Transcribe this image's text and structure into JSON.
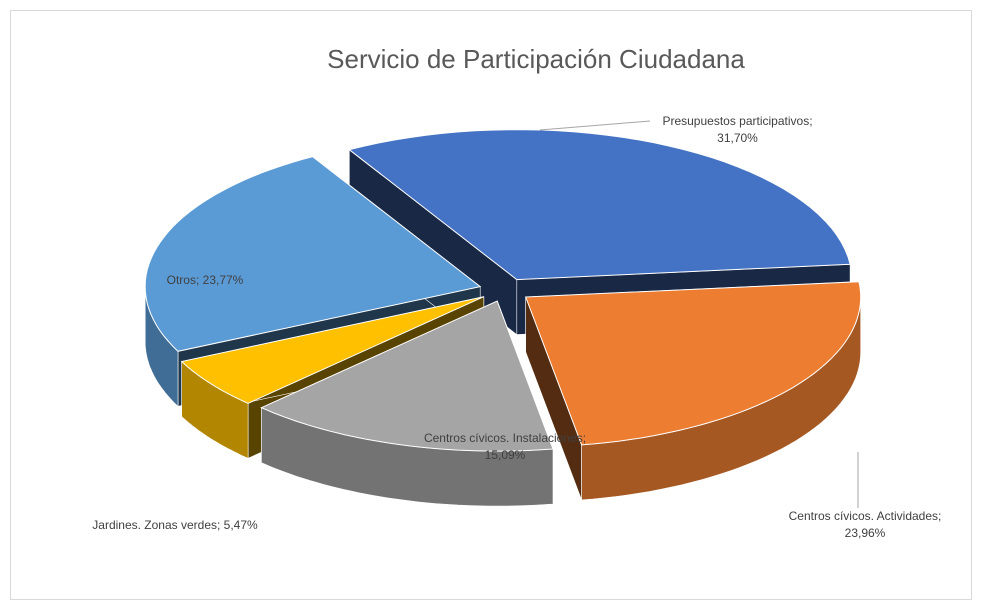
{
  "chart_data": {
    "type": "pie3d",
    "title": "Servicio de Participación Ciudadana",
    "labels": [
      "Presupuestos participativos; 31,70%",
      "Centros cívicos. Actividades; 23,96%",
      "Centros cívicos. Instalaciones; 15,09%",
      "Jardines. Zonas verdes; 5,47%",
      "Otros; 23,77%"
    ],
    "values": [
      31.7,
      23.96,
      15.09,
      5.47,
      23.77
    ],
    "colors": [
      "#4472c4",
      "#ed7d31",
      "#a5a5a5",
      "#ffc000",
      "#5b9bd5"
    ]
  }
}
